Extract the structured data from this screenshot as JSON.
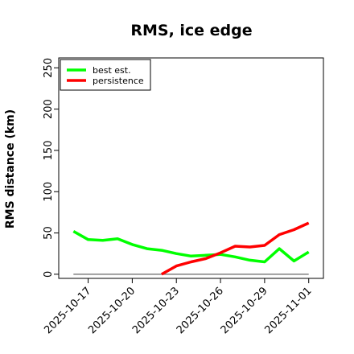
{
  "chart_data": {
    "type": "line",
    "title": "RMS, ice edge",
    "xlabel": "",
    "ylabel": "RMS distance (km)",
    "x_ticks": [
      "2025-10-17",
      "2025-10-20",
      "2025-10-23",
      "2025-10-26",
      "2025-10-29",
      "2025-11-01"
    ],
    "xlim": [
      "2025-10-15",
      "2025-11-02"
    ],
    "y_ticks": [
      "0",
      "50",
      "100",
      "150",
      "200",
      "250"
    ],
    "ylim": [
      -5,
      262
    ],
    "grid": false,
    "legend_position": "top-left",
    "series": [
      {
        "name": "best est.",
        "color": "#00ff00",
        "x": [
          "2025-10-16",
          "2025-10-17",
          "2025-10-18",
          "2025-10-19",
          "2025-10-20",
          "2025-10-21",
          "2025-10-22",
          "2025-10-23",
          "2025-10-24",
          "2025-10-25",
          "2025-10-26",
          "2025-10-27",
          "2025-10-28",
          "2025-10-29",
          "2025-10-30",
          "2025-10-31",
          "2025-11-01"
        ],
        "values": [
          52,
          42,
          41,
          43,
          36,
          31,
          29,
          25,
          22,
          23,
          24,
          21,
          17,
          15,
          31,
          16,
          27
        ]
      },
      {
        "name": "persistence",
        "color": "#ff0000",
        "x": [
          "2025-10-22",
          "2025-10-23",
          "2025-10-24",
          "2025-10-25",
          "2025-10-26",
          "2025-10-27",
          "2025-10-28",
          "2025-10-29",
          "2025-10-30",
          "2025-10-31",
          "2025-11-01"
        ],
        "values": [
          0,
          10,
          15,
          19,
          26,
          34,
          33,
          35,
          48,
          54,
          62
        ]
      }
    ],
    "baseline": {
      "value": 0,
      "color": "#808080",
      "x_start": "2025-10-16",
      "x_end": "2025-11-01"
    }
  }
}
